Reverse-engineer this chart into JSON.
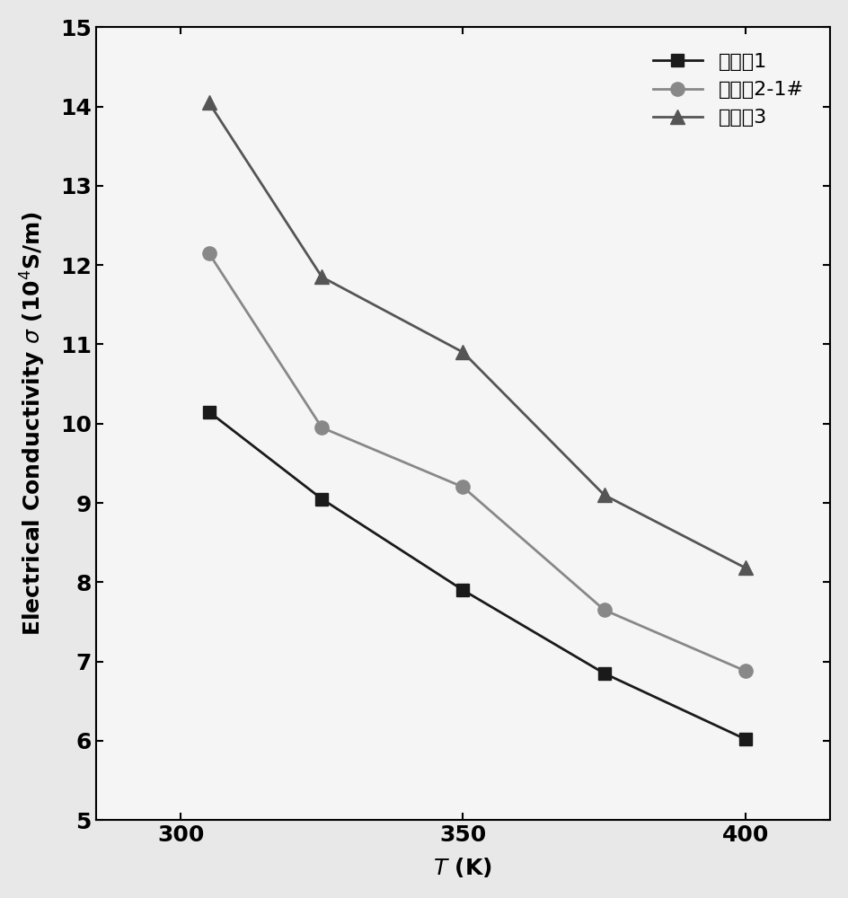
{
  "series": [
    {
      "label": "实施例1",
      "x": [
        305,
        325,
        350,
        375,
        400
      ],
      "y": [
        10.15,
        9.05,
        7.9,
        6.85,
        6.02
      ],
      "color": "#1a1a1a",
      "marker": "s",
      "markersize": 10,
      "linewidth": 2.0,
      "zorder": 3
    },
    {
      "label": "实施例2-1#",
      "x": [
        305,
        325,
        350,
        375,
        400
      ],
      "y": [
        12.15,
        9.95,
        9.2,
        7.65,
        6.88
      ],
      "color": "#888888",
      "marker": "o",
      "markersize": 11,
      "linewidth": 2.0,
      "zorder": 2
    },
    {
      "label": "实施例3",
      "x": [
        305,
        325,
        350,
        375,
        400
      ],
      "y": [
        14.05,
        11.85,
        10.9,
        9.1,
        8.18
      ],
      "color": "#555555",
      "marker": "^",
      "markersize": 11,
      "linewidth": 2.0,
      "zorder": 1
    }
  ],
  "xlabel": "T (K)",
  "ylabel": "Electrical Conductivity σ (10⁴S/m)",
  "xlim": [
    285,
    415
  ],
  "ylim": [
    5,
    15
  ],
  "xticks": [
    300,
    350,
    400
  ],
  "yticks": [
    5,
    6,
    7,
    8,
    9,
    10,
    11,
    12,
    13,
    14,
    15
  ],
  "legend_loc": "upper right",
  "figsize": [
    9.45,
    10.0
  ],
  "dpi": 100,
  "spine_linewidth": 1.5,
  "tick_labelsize": 18,
  "axis_labelsize": 18,
  "legend_fontsize": 16,
  "background_color": "#f0f0f0"
}
